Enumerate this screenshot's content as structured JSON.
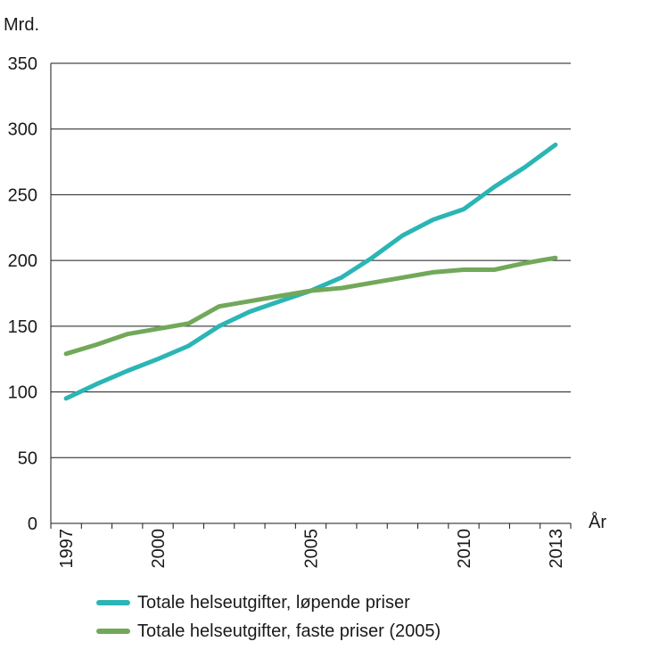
{
  "chart_data": {
    "type": "line",
    "ylabel": "Mrd.",
    "xlabel": "År",
    "ylim": [
      0,
      350
    ],
    "yticks": [
      0,
      50,
      100,
      150,
      200,
      250,
      300,
      350
    ],
    "xlim": [
      1996.5,
      2013.5
    ],
    "xticks": [
      1997,
      2000,
      2005,
      2010,
      2013
    ],
    "grid": "horizontal",
    "legend_position": "bottom",
    "x": [
      1997,
      1998,
      1999,
      2000,
      2001,
      2002,
      2003,
      2004,
      2005,
      2006,
      2007,
      2008,
      2009,
      2010,
      2011,
      2012,
      2013
    ],
    "series": [
      {
        "name": "Totale helseutgifter, løpende priser",
        "color": "#2bb5b5",
        "values": [
          95,
          106,
          116,
          125,
          135,
          150,
          161,
          169,
          177,
          187,
          202,
          219,
          231,
          239,
          256,
          271,
          288
        ]
      },
      {
        "name": "Totale helseutgifter, faste priser (2005)",
        "color": "#72a85a",
        "values": [
          129,
          136,
          144,
          148,
          152,
          165,
          169,
          173,
          177,
          179,
          183,
          187,
          191,
          193,
          193,
          198,
          202
        ]
      }
    ]
  }
}
